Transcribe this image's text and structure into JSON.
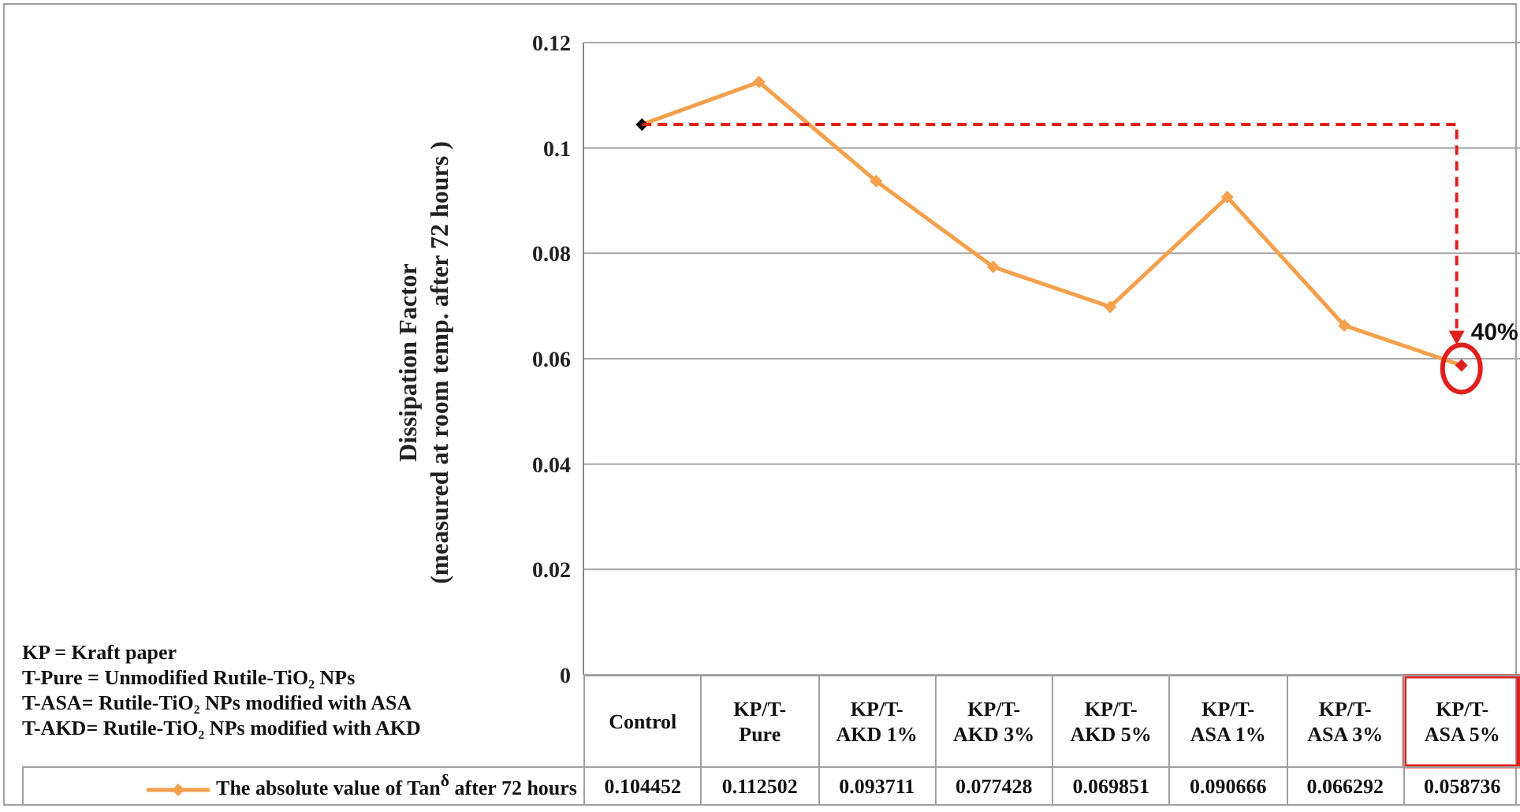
{
  "chart_data": {
    "type": "line",
    "ylabel": "Dissipation Factor\n(measured at room temp. after 72 hours  )",
    "categories": [
      "Control",
      "KP/T-Pure",
      "KP/T-AKD 1%",
      "KP/T-AKD 3%",
      "KP/T-AKD 5%",
      "KP/T-ASA 1%",
      "KP/T-ASA 3%",
      "KP/T-ASA 5%"
    ],
    "series": [
      {
        "name": "The absolute value of Tan$^{δ}$ after 72 hours",
        "color": "#f4a04c",
        "colors": [
          "#000000",
          "#f4a04c",
          "#f4a04c",
          "#f4a04c",
          "#f4a04c",
          "#f4a04c",
          "#f4a04c",
          "#e0201c"
        ],
        "values": [
          0.104452,
          0.112502,
          0.093711,
          0.077428,
          0.069851,
          0.090666,
          0.066292,
          0.058736
        ]
      }
    ],
    "ylim": [
      0,
      0.12
    ],
    "yticks": [
      0,
      0.02,
      0.04,
      0.06,
      0.08,
      0.1,
      0.12
    ],
    "grid": "y",
    "legend": "bottom",
    "marker": "diamond",
    "line_style": "solid",
    "data_labels": true,
    "annotations": [
      {
        "text": "40%",
        "x": "KP/T-ASA 5%",
        "y": 0.058736
      },
      "KP = Kraft paper",
      "T-Pure = Unmodified  Rutile-TiO₂ NPs",
      "T-ASA= Rutile-TiO₂  NPs modified with ASA",
      "T-AKD=  Rutile-TiO₂  NPs modified with AKD"
    ]
  }
}
